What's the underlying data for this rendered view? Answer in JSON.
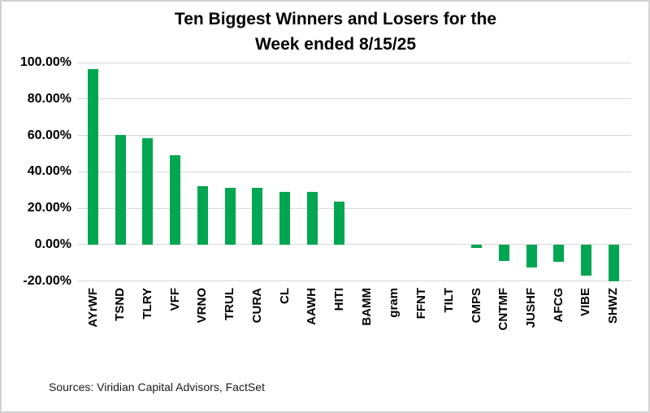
{
  "title": {
    "line1": "Ten Biggest Winners and Losers for the",
    "line2": "Week ended 8/15/25"
  },
  "source_note": "Sources: Viridian Capital Advisors, FactSet",
  "colors": {
    "bar_green": "#00A651",
    "gridline": "#D9D9D9",
    "text": "#000000",
    "frame_border": "#D2D2D2"
  },
  "chart_data": {
    "type": "bar",
    "title": "Ten Biggest Winners and Losers for the Week ended 8/15/25",
    "categories": [
      "AYrWF",
      "TSND",
      "TLRY",
      "VFF",
      "VRNO",
      "TRUL",
      "CURA",
      "CL",
      "AAWH",
      "HITI",
      "BAMM",
      "gram",
      "FFNT",
      "TILT",
      "CMPS",
      "CNTMF",
      "JUSHF",
      "AFCG",
      "VIBE",
      "SHWZ"
    ],
    "values": [
      96.3,
      60.2,
      58.5,
      49.2,
      31.9,
      31.2,
      31.0,
      28.9,
      28.8,
      23.7,
      0,
      0,
      0,
      0,
      -1.7,
      -9.0,
      -12.7,
      -9.4,
      -17.2,
      -20.3
    ],
    "xlabel": "",
    "ylabel": "",
    "ylim": [
      -20,
      100
    ],
    "yticks": [
      {
        "value": 100,
        "label": "100.00%"
      },
      {
        "value": 80,
        "label": "80.00%"
      },
      {
        "value": 60,
        "label": "60.00%"
      },
      {
        "value": 40,
        "label": "40.00%"
      },
      {
        "value": 20,
        "label": "20.00%"
      },
      {
        "value": 0,
        "label": "0.00%"
      },
      {
        "value": -20,
        "label": "-20.00%"
      }
    ],
    "grid": true,
    "legend": false,
    "bar_color": "#00A651"
  }
}
